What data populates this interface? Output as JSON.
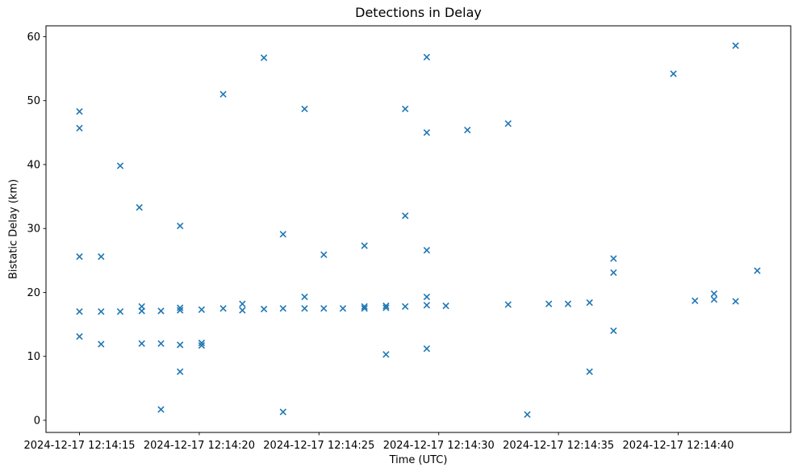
{
  "figure": {
    "background": "#ffffff",
    "axis_color": "#000000",
    "text_color": "#000000"
  },
  "chart_data": {
    "type": "scatter",
    "title": "Detections in Delay",
    "xlabel": "Time (UTC)",
    "ylabel": "Bistatic Delay (km)",
    "marker": "x",
    "marker_color": "#1f77b4",
    "grid": false,
    "legend": null,
    "x_unit": "seconds within 2024-12-17 12:14 UTC",
    "xlim": [
      13.6,
      44.7
    ],
    "ylim": [
      -1.9,
      61.7
    ],
    "xticks": [
      {
        "value": 15,
        "label": "2024-12-17 12:14:15"
      },
      {
        "value": 20,
        "label": "2024-12-17 12:14:20"
      },
      {
        "value": 25,
        "label": "2024-12-17 12:14:25"
      },
      {
        "value": 30,
        "label": "2024-12-17 12:14:30"
      },
      {
        "value": 35,
        "label": "2024-12-17 12:14:35"
      },
      {
        "value": 40,
        "label": "2024-12-17 12:14:40"
      }
    ],
    "yticks": [
      0,
      10,
      20,
      30,
      40,
      50,
      60
    ],
    "points": [
      [
        15.0,
        48.3
      ],
      [
        15.0,
        45.7
      ],
      [
        15.0,
        25.6
      ],
      [
        15.0,
        17.0
      ],
      [
        15.0,
        13.1
      ],
      [
        15.9,
        25.6
      ],
      [
        15.9,
        17.0
      ],
      [
        15.9,
        11.9
      ],
      [
        16.7,
        39.8
      ],
      [
        16.7,
        17.0
      ],
      [
        17.5,
        33.3
      ],
      [
        17.6,
        17.8
      ],
      [
        17.6,
        17.1
      ],
      [
        17.6,
        12.0
      ],
      [
        18.4,
        17.1
      ],
      [
        18.4,
        12.0
      ],
      [
        18.4,
        1.7
      ],
      [
        19.2,
        30.4
      ],
      [
        19.2,
        17.6
      ],
      [
        19.2,
        17.2
      ],
      [
        19.2,
        11.8
      ],
      [
        19.2,
        7.6
      ],
      [
        20.1,
        17.3
      ],
      [
        20.1,
        12.1
      ],
      [
        20.1,
        11.7
      ],
      [
        21.0,
        51.0
      ],
      [
        21.0,
        17.5
      ],
      [
        21.8,
        18.2
      ],
      [
        21.8,
        17.2
      ],
      [
        22.7,
        56.7
      ],
      [
        22.7,
        17.4
      ],
      [
        23.5,
        29.1
      ],
      [
        23.5,
        17.5
      ],
      [
        23.5,
        1.3
      ],
      [
        24.4,
        48.7
      ],
      [
        24.4,
        19.3
      ],
      [
        24.4,
        17.5
      ],
      [
        25.2,
        25.9
      ],
      [
        25.2,
        17.5
      ],
      [
        26.0,
        17.5
      ],
      [
        26.9,
        27.3
      ],
      [
        26.9,
        17.8
      ],
      [
        26.9,
        17.5
      ],
      [
        27.8,
        17.9
      ],
      [
        27.8,
        17.6
      ],
      [
        27.8,
        10.3
      ],
      [
        28.6,
        48.7
      ],
      [
        28.6,
        32.0
      ],
      [
        28.6,
        17.8
      ],
      [
        29.5,
        56.8
      ],
      [
        29.5,
        45.0
      ],
      [
        29.5,
        26.6
      ],
      [
        29.5,
        19.3
      ],
      [
        29.5,
        18.0
      ],
      [
        29.5,
        11.2
      ],
      [
        30.3,
        17.9
      ],
      [
        31.2,
        45.4
      ],
      [
        32.9,
        46.4
      ],
      [
        32.9,
        18.1
      ],
      [
        33.7,
        0.9
      ],
      [
        34.6,
        18.2
      ],
      [
        35.4,
        18.2
      ],
      [
        36.3,
        18.4
      ],
      [
        36.3,
        7.6
      ],
      [
        37.3,
        25.3
      ],
      [
        37.3,
        23.1
      ],
      [
        37.3,
        14.0
      ],
      [
        39.8,
        54.2
      ],
      [
        40.7,
        18.7
      ],
      [
        41.5,
        19.8
      ],
      [
        41.5,
        18.9
      ],
      [
        42.4,
        58.6
      ],
      [
        42.4,
        18.6
      ],
      [
        43.3,
        23.4
      ]
    ]
  }
}
